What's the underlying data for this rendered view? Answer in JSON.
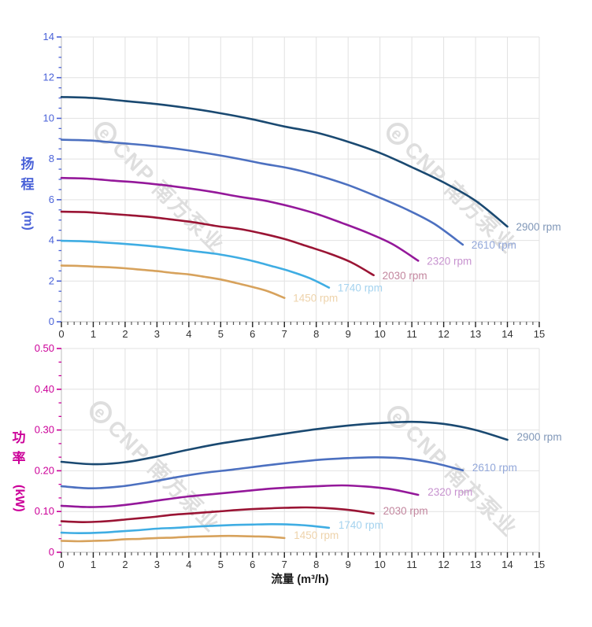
{
  "watermark": {
    "logo": "e",
    "text": "CNP 南方泵业",
    "color": "#d7d7d7"
  },
  "axes": {
    "flow": {
      "label": "流量 (m³/h)",
      "tick_labels": [
        "0",
        "1",
        "2",
        "3",
        "4",
        "5",
        "6",
        "7",
        "8",
        "9",
        "10",
        "11",
        "12",
        "13",
        "14",
        "15"
      ],
      "tick_color": "#333333"
    },
    "head": {
      "title": "扬程",
      "unit": "(m)",
      "color": "#4a62d8",
      "tick_labels": [
        "0",
        "2",
        "4",
        "6",
        "8",
        "10",
        "12",
        "14"
      ]
    },
    "power": {
      "title": "功率",
      "unit": "(kW)",
      "color": "#cc0099",
      "tick_labels": [
        "0",
        "0.10",
        "0.20",
        "0.30",
        "0.40",
        "0.50"
      ]
    }
  },
  "chart_data": [
    {
      "type": "line",
      "title": "",
      "xlabel": "流量 (m³/h)",
      "ylabel": "扬程 (m)",
      "xlim": [
        0,
        15
      ],
      "ylim": [
        0,
        14
      ],
      "x_major": 1,
      "y_major": 2,
      "grid": true,
      "legend_position": "curve-end-labels",
      "series": [
        {
          "name": "2900 rpm",
          "color": "#1a4971",
          "label_color": "#8097b8",
          "points": [
            [
              0,
              11.05
            ],
            [
              1,
              11.0
            ],
            [
              2,
              10.85
            ],
            [
              3,
              10.7
            ],
            [
              4,
              10.5
            ],
            [
              5,
              10.25
            ],
            [
              6,
              9.95
            ],
            [
              7,
              9.6
            ],
            [
              8,
              9.3
            ],
            [
              9,
              8.85
            ],
            [
              10,
              8.3
            ],
            [
              11,
              7.6
            ],
            [
              12,
              6.85
            ],
            [
              13,
              5.95
            ],
            [
              14,
              4.68
            ]
          ]
        },
        {
          "name": "2610 rpm",
          "color": "#4c70c0",
          "label_color": "#93a8da",
          "points": [
            [
              0,
              8.95
            ],
            [
              0.9,
              8.91
            ],
            [
              1.8,
              8.79
            ],
            [
              2.7,
              8.67
            ],
            [
              3.6,
              8.51
            ],
            [
              4.5,
              8.3
            ],
            [
              5.4,
              8.06
            ],
            [
              6.3,
              7.78
            ],
            [
              7.2,
              7.53
            ],
            [
              8.1,
              7.17
            ],
            [
              9,
              6.72
            ],
            [
              9.9,
              6.16
            ],
            [
              10.8,
              5.55
            ],
            [
              11.7,
              4.82
            ],
            [
              12.6,
              3.79
            ]
          ]
        },
        {
          "name": "2320 rpm",
          "color": "#94189a",
          "label_color": "#c792cf",
          "points": [
            [
              0,
              7.07
            ],
            [
              0.8,
              7.04
            ],
            [
              1.6,
              6.94
            ],
            [
              2.4,
              6.85
            ],
            [
              3.2,
              6.72
            ],
            [
              4,
              6.56
            ],
            [
              4.8,
              6.37
            ],
            [
              5.6,
              6.14
            ],
            [
              6.4,
              5.95
            ],
            [
              7.2,
              5.66
            ],
            [
              8,
              5.31
            ],
            [
              8.8,
              4.86
            ],
            [
              9.6,
              4.38
            ],
            [
              10.4,
              3.81
            ],
            [
              11.2,
              3.0
            ]
          ]
        },
        {
          "name": "2030 rpm",
          "color": "#9a1434",
          "label_color": "#c3879f",
          "points": [
            [
              0,
              5.41
            ],
            [
              0.7,
              5.39
            ],
            [
              1.4,
              5.32
            ],
            [
              2.1,
              5.24
            ],
            [
              2.8,
              5.15
            ],
            [
              3.5,
              5.02
            ],
            [
              4.2,
              4.88
            ],
            [
              4.9,
              4.7
            ],
            [
              5.6,
              4.56
            ],
            [
              6.3,
              4.34
            ],
            [
              7,
              4.07
            ],
            [
              7.7,
              3.72
            ],
            [
              8.4,
              3.36
            ],
            [
              9.1,
              2.92
            ],
            [
              9.8,
              2.29
            ]
          ]
        },
        {
          "name": "1740 rpm",
          "color": "#3fade3",
          "label_color": "#a5d3ef",
          "points": [
            [
              0,
              3.98
            ],
            [
              0.6,
              3.96
            ],
            [
              1.2,
              3.91
            ],
            [
              1.8,
              3.85
            ],
            [
              2.4,
              3.78
            ],
            [
              3,
              3.69
            ],
            [
              3.6,
              3.58
            ],
            [
              4.2,
              3.46
            ],
            [
              4.8,
              3.35
            ],
            [
              5.4,
              3.19
            ],
            [
              6,
              2.99
            ],
            [
              6.6,
              2.74
            ],
            [
              7.2,
              2.47
            ],
            [
              7.8,
              2.14
            ],
            [
              8.4,
              1.68
            ]
          ]
        },
        {
          "name": "1450 rpm",
          "color": "#d7a25c",
          "label_color": "#eed3ab",
          "points": [
            [
              0,
              2.76
            ],
            [
              0.5,
              2.75
            ],
            [
              1,
              2.71
            ],
            [
              1.5,
              2.68
            ],
            [
              2,
              2.63
            ],
            [
              2.5,
              2.56
            ],
            [
              3,
              2.49
            ],
            [
              3.5,
              2.4
            ],
            [
              4,
              2.33
            ],
            [
              4.5,
              2.21
            ],
            [
              5,
              2.08
            ],
            [
              5.5,
              1.9
            ],
            [
              6,
              1.71
            ],
            [
              6.5,
              1.49
            ],
            [
              7,
              1.17
            ]
          ]
        }
      ]
    },
    {
      "type": "line",
      "title": "",
      "xlabel": "流量 (m³/h)",
      "ylabel": "功率 (kW)",
      "xlim": [
        0,
        15
      ],
      "ylim": [
        0,
        0.5
      ],
      "x_major": 1,
      "y_major": 0.1,
      "grid": true,
      "legend_position": "curve-end-labels",
      "series": [
        {
          "name": "2900 rpm",
          "color": "#1a4971",
          "label_color": "#8097b8",
          "points": [
            [
              0,
              0.222
            ],
            [
              1,
              0.216
            ],
            [
              2,
              0.221
            ],
            [
              3,
              0.235
            ],
            [
              4,
              0.252
            ],
            [
              5,
              0.267
            ],
            [
              6,
              0.279
            ],
            [
              7,
              0.291
            ],
            [
              8,
              0.302
            ],
            [
              9,
              0.311
            ],
            [
              10,
              0.317
            ],
            [
              11,
              0.32
            ],
            [
              12,
              0.315
            ],
            [
              13,
              0.3
            ],
            [
              14,
              0.276
            ]
          ]
        },
        {
          "name": "2610 rpm",
          "color": "#4c70c0",
          "label_color": "#93a8da",
          "points": [
            [
              0,
              0.162
            ],
            [
              0.9,
              0.157
            ],
            [
              1.8,
              0.161
            ],
            [
              2.7,
              0.171
            ],
            [
              3.6,
              0.184
            ],
            [
              4.5,
              0.195
            ],
            [
              5.4,
              0.203
            ],
            [
              6.3,
              0.212
            ],
            [
              7.2,
              0.22
            ],
            [
              8.1,
              0.227
            ],
            [
              9,
              0.231
            ],
            [
              9.9,
              0.233
            ],
            [
              10.8,
              0.23
            ],
            [
              11.7,
              0.219
            ],
            [
              12.6,
              0.201
            ]
          ]
        },
        {
          "name": "2320 rpm",
          "color": "#94189a",
          "label_color": "#c792cf",
          "points": [
            [
              0,
              0.114
            ],
            [
              0.8,
              0.111
            ],
            [
              1.6,
              0.113
            ],
            [
              2.4,
              0.12
            ],
            [
              3.2,
              0.129
            ],
            [
              4,
              0.137
            ],
            [
              4.8,
              0.143
            ],
            [
              5.6,
              0.149
            ],
            [
              6.4,
              0.155
            ],
            [
              7.2,
              0.159
            ],
            [
              8,
              0.162
            ],
            [
              8.8,
              0.164
            ],
            [
              9.6,
              0.161
            ],
            [
              10.4,
              0.154
            ],
            [
              11.2,
              0.141
            ]
          ]
        },
        {
          "name": "2030 rpm",
          "color": "#9a1434",
          "label_color": "#c3879f",
          "points": [
            [
              0,
              0.076
            ],
            [
              0.7,
              0.074
            ],
            [
              1.4,
              0.076
            ],
            [
              2.1,
              0.081
            ],
            [
              2.8,
              0.086
            ],
            [
              3.5,
              0.092
            ],
            [
              4.2,
              0.096
            ],
            [
              4.9,
              0.1
            ],
            [
              5.6,
              0.104
            ],
            [
              6.3,
              0.107
            ],
            [
              7,
              0.109
            ],
            [
              7.7,
              0.11
            ],
            [
              8.4,
              0.108
            ],
            [
              9.1,
              0.103
            ],
            [
              9.8,
              0.095
            ]
          ]
        },
        {
          "name": "1740 rpm",
          "color": "#3fade3",
          "label_color": "#a5d3ef",
          "points": [
            [
              0,
              0.048
            ],
            [
              0.6,
              0.047
            ],
            [
              1.2,
              0.048
            ],
            [
              1.8,
              0.051
            ],
            [
              2.4,
              0.054
            ],
            [
              3,
              0.058
            ],
            [
              3.6,
              0.06
            ],
            [
              4.2,
              0.063
            ],
            [
              4.8,
              0.065
            ],
            [
              5.4,
              0.067
            ],
            [
              6,
              0.068
            ],
            [
              6.6,
              0.069
            ],
            [
              7.2,
              0.068
            ],
            [
              7.8,
              0.065
            ],
            [
              8.4,
              0.06
            ]
          ]
        },
        {
          "name": "1450 rpm",
          "color": "#d7a25c",
          "label_color": "#eed3ab",
          "points": [
            [
              0,
              0.028
            ],
            [
              0.5,
              0.027
            ],
            [
              1,
              0.028
            ],
            [
              1.5,
              0.029
            ],
            [
              2,
              0.032
            ],
            [
              2.5,
              0.033
            ],
            [
              3,
              0.035
            ],
            [
              3.5,
              0.036
            ],
            [
              4,
              0.038
            ],
            [
              4.5,
              0.039
            ],
            [
              5,
              0.04
            ],
            [
              5.5,
              0.04
            ],
            [
              6,
              0.039
            ],
            [
              6.5,
              0.038
            ],
            [
              7,
              0.035
            ]
          ]
        }
      ]
    }
  ]
}
